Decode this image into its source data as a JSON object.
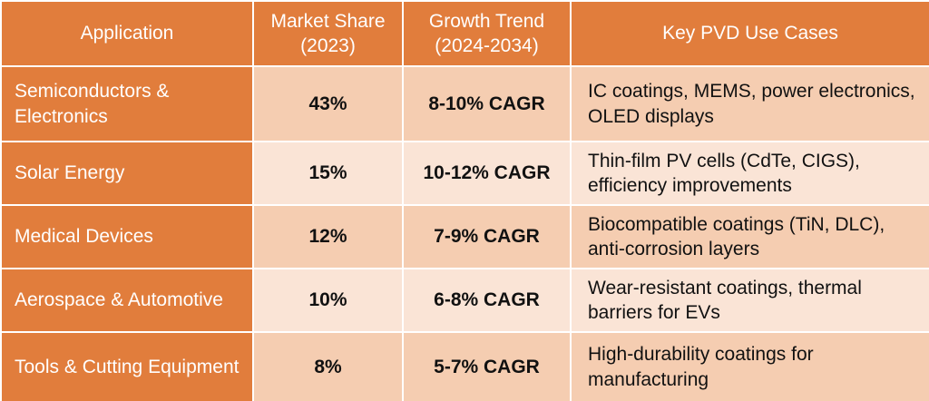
{
  "table": {
    "header": [
      "Application",
      "Market Share (2023)",
      "Growth Trend (2024-2034)",
      "Key PVD Use Cases"
    ],
    "rows": [
      [
        "Semiconductors & Electronics",
        "43%",
        "8-10% CAGR",
        "IC coatings, MEMS, power electronics, OLED displays"
      ],
      [
        "Solar Energy",
        "15%",
        "10-12% CAGR",
        "Thin-film PV cells (CdTe, CIGS), efficiency improvements"
      ],
      [
        "Medical Devices",
        "12%",
        "7-9% CAGR",
        "Biocompatible coatings (TiN, DLC), anti-corrosion layers"
      ],
      [
        "Aerospace & Automotive",
        "10%",
        "6-8% CAGR",
        "Wear-resistant coatings, thermal barriers for EVs"
      ],
      [
        "Tools & Cutting Equipment",
        "8%",
        "5-7% CAGR",
        "High-durability coatings for manufacturing"
      ]
    ]
  }
}
